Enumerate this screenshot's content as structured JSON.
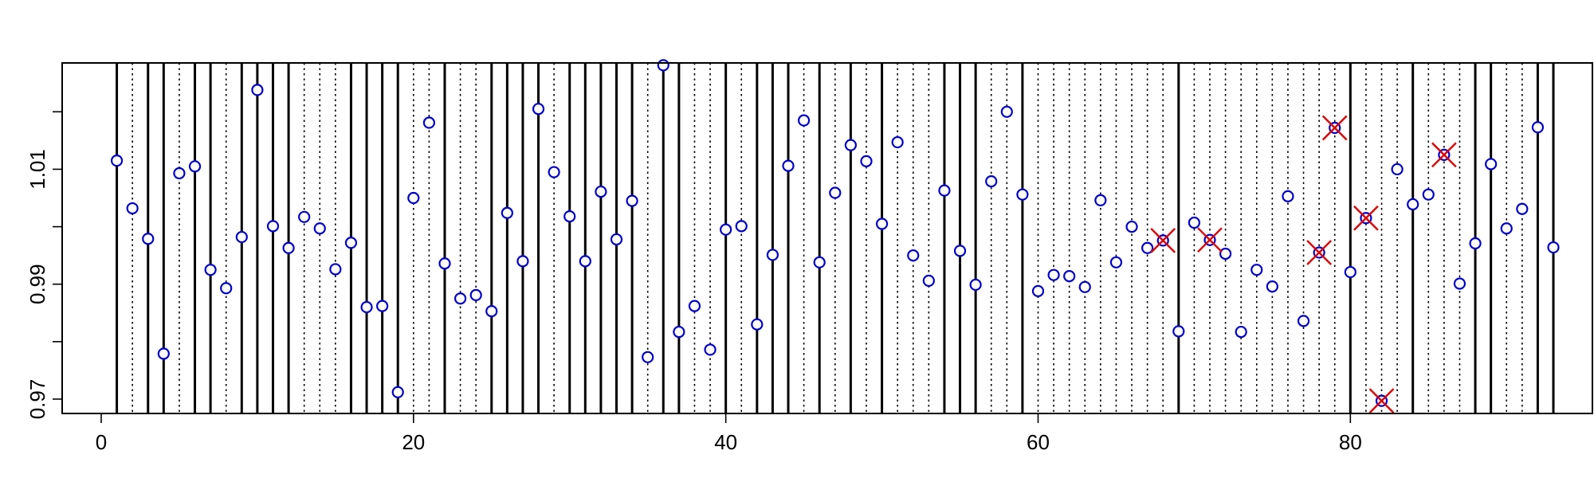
{
  "chart_data": {
    "type": "scatter",
    "title": "",
    "xlabel": "",
    "ylabel": "",
    "xlim": [
      -2.5,
      95.5
    ],
    "ylim": [
      0.9675,
      1.0285
    ],
    "x_ticks": [
      0,
      20,
      40,
      60,
      80
    ],
    "x_tick_labels": [
      "0",
      "20",
      "40",
      "60",
      "80"
    ],
    "y_ticks": [
      0.97,
      0.99,
      1.01
    ],
    "y_tick_labels": [
      "0.97",
      "0.99",
      "1.01"
    ],
    "grid": false,
    "legend": "none",
    "colors": {
      "points": "#0000cc",
      "flagged": "#dd0000",
      "solid_lines": "#000000",
      "dotted_lines": "#000000"
    },
    "series": [
      {
        "marker": "circle",
        "x": [
          1,
          2,
          3,
          4,
          5,
          6,
          7,
          8,
          9,
          10,
          11,
          12,
          13,
          14,
          15,
          16,
          17,
          18,
          19,
          20,
          21,
          22,
          23,
          24,
          25,
          26,
          27,
          28,
          29,
          30,
          31,
          32,
          33,
          34,
          35,
          36,
          37,
          38,
          39,
          40,
          41,
          42,
          43,
          44,
          45,
          46,
          47,
          48,
          49,
          50,
          51,
          52,
          53,
          54,
          55,
          56,
          57,
          58,
          59,
          60,
          61,
          62,
          63,
          64,
          65,
          66,
          67,
          68,
          69,
          70,
          71,
          72,
          73,
          74,
          75,
          76,
          77,
          78,
          79,
          80,
          81,
          82,
          83,
          84,
          85,
          86,
          87,
          88,
          89,
          90,
          91,
          92,
          93
        ],
        "y": [
          1.0115,
          1.0032,
          0.9979,
          0.9779,
          1.0093,
          1.0105,
          0.9925,
          0.9893,
          0.9982,
          1.0238,
          1.0001,
          0.9963,
          1.0017,
          0.9997,
          0.9926,
          0.9972,
          0.986,
          0.9862,
          0.9712,
          1.005,
          1.0181,
          0.9936,
          0.9875,
          0.9881,
          0.9853,
          1.0024,
          0.994,
          1.0205,
          1.0095,
          1.0018,
          0.994,
          1.0061,
          0.9978,
          1.0045,
          0.9773,
          1.0281,
          0.9817,
          0.9862,
          0.9786,
          0.9995,
          1.0001,
          0.983,
          0.9951,
          1.0106,
          1.0185,
          0.9938,
          1.0059,
          1.0142,
          1.0114,
          1.0005,
          1.0147,
          0.995,
          0.9906,
          1.0063,
          0.9958,
          0.9899,
          1.0079,
          1.02,
          1.0056,
          0.9888,
          0.9916,
          0.9914,
          0.9895,
          1.0046,
          0.9938,
          1.0,
          0.9963,
          0.9976,
          0.9818,
          1.0007,
          0.9977,
          0.9953,
          0.9817,
          0.9925,
          0.9896,
          1.0053,
          0.9836,
          0.9955,
          1.0172,
          0.9921,
          1.0015,
          0.9697,
          1.01,
          1.0039,
          1.0056,
          1.0125,
          0.9901,
          0.9971,
          1.0109,
          0.9997,
          1.0031,
          1.0173,
          0.9964
        ]
      },
      {
        "marker": "x",
        "x": [
          68,
          71,
          78,
          79,
          81,
          82,
          86
        ],
        "y": [
          0.9976,
          0.9977,
          0.9955,
          1.0172,
          1.0015,
          0.9697,
          1.0125
        ]
      }
    ],
    "vertical_lines": {
      "solid": [
        1,
        3,
        4,
        6,
        7,
        9,
        10,
        11,
        12,
        16,
        17,
        18,
        19,
        22,
        25,
        26,
        27,
        28,
        30,
        31,
        32,
        33,
        34,
        36,
        37,
        40,
        42,
        43,
        44,
        46,
        48,
        50,
        54,
        55,
        56,
        59,
        69,
        80,
        84,
        88,
        89,
        92,
        93
      ],
      "dotted": [
        2,
        5,
        8,
        13,
        14,
        15,
        20,
        21,
        23,
        24,
        29,
        35,
        38,
        39,
        41,
        45,
        47,
        49,
        51,
        52,
        53,
        57,
        58,
        60,
        61,
        62,
        63,
        64,
        65,
        66,
        67,
        68,
        70,
        71,
        72,
        73,
        74,
        75,
        76,
        77,
        78,
        79,
        81,
        82,
        83,
        85,
        86,
        87,
        90,
        91
      ]
    }
  }
}
